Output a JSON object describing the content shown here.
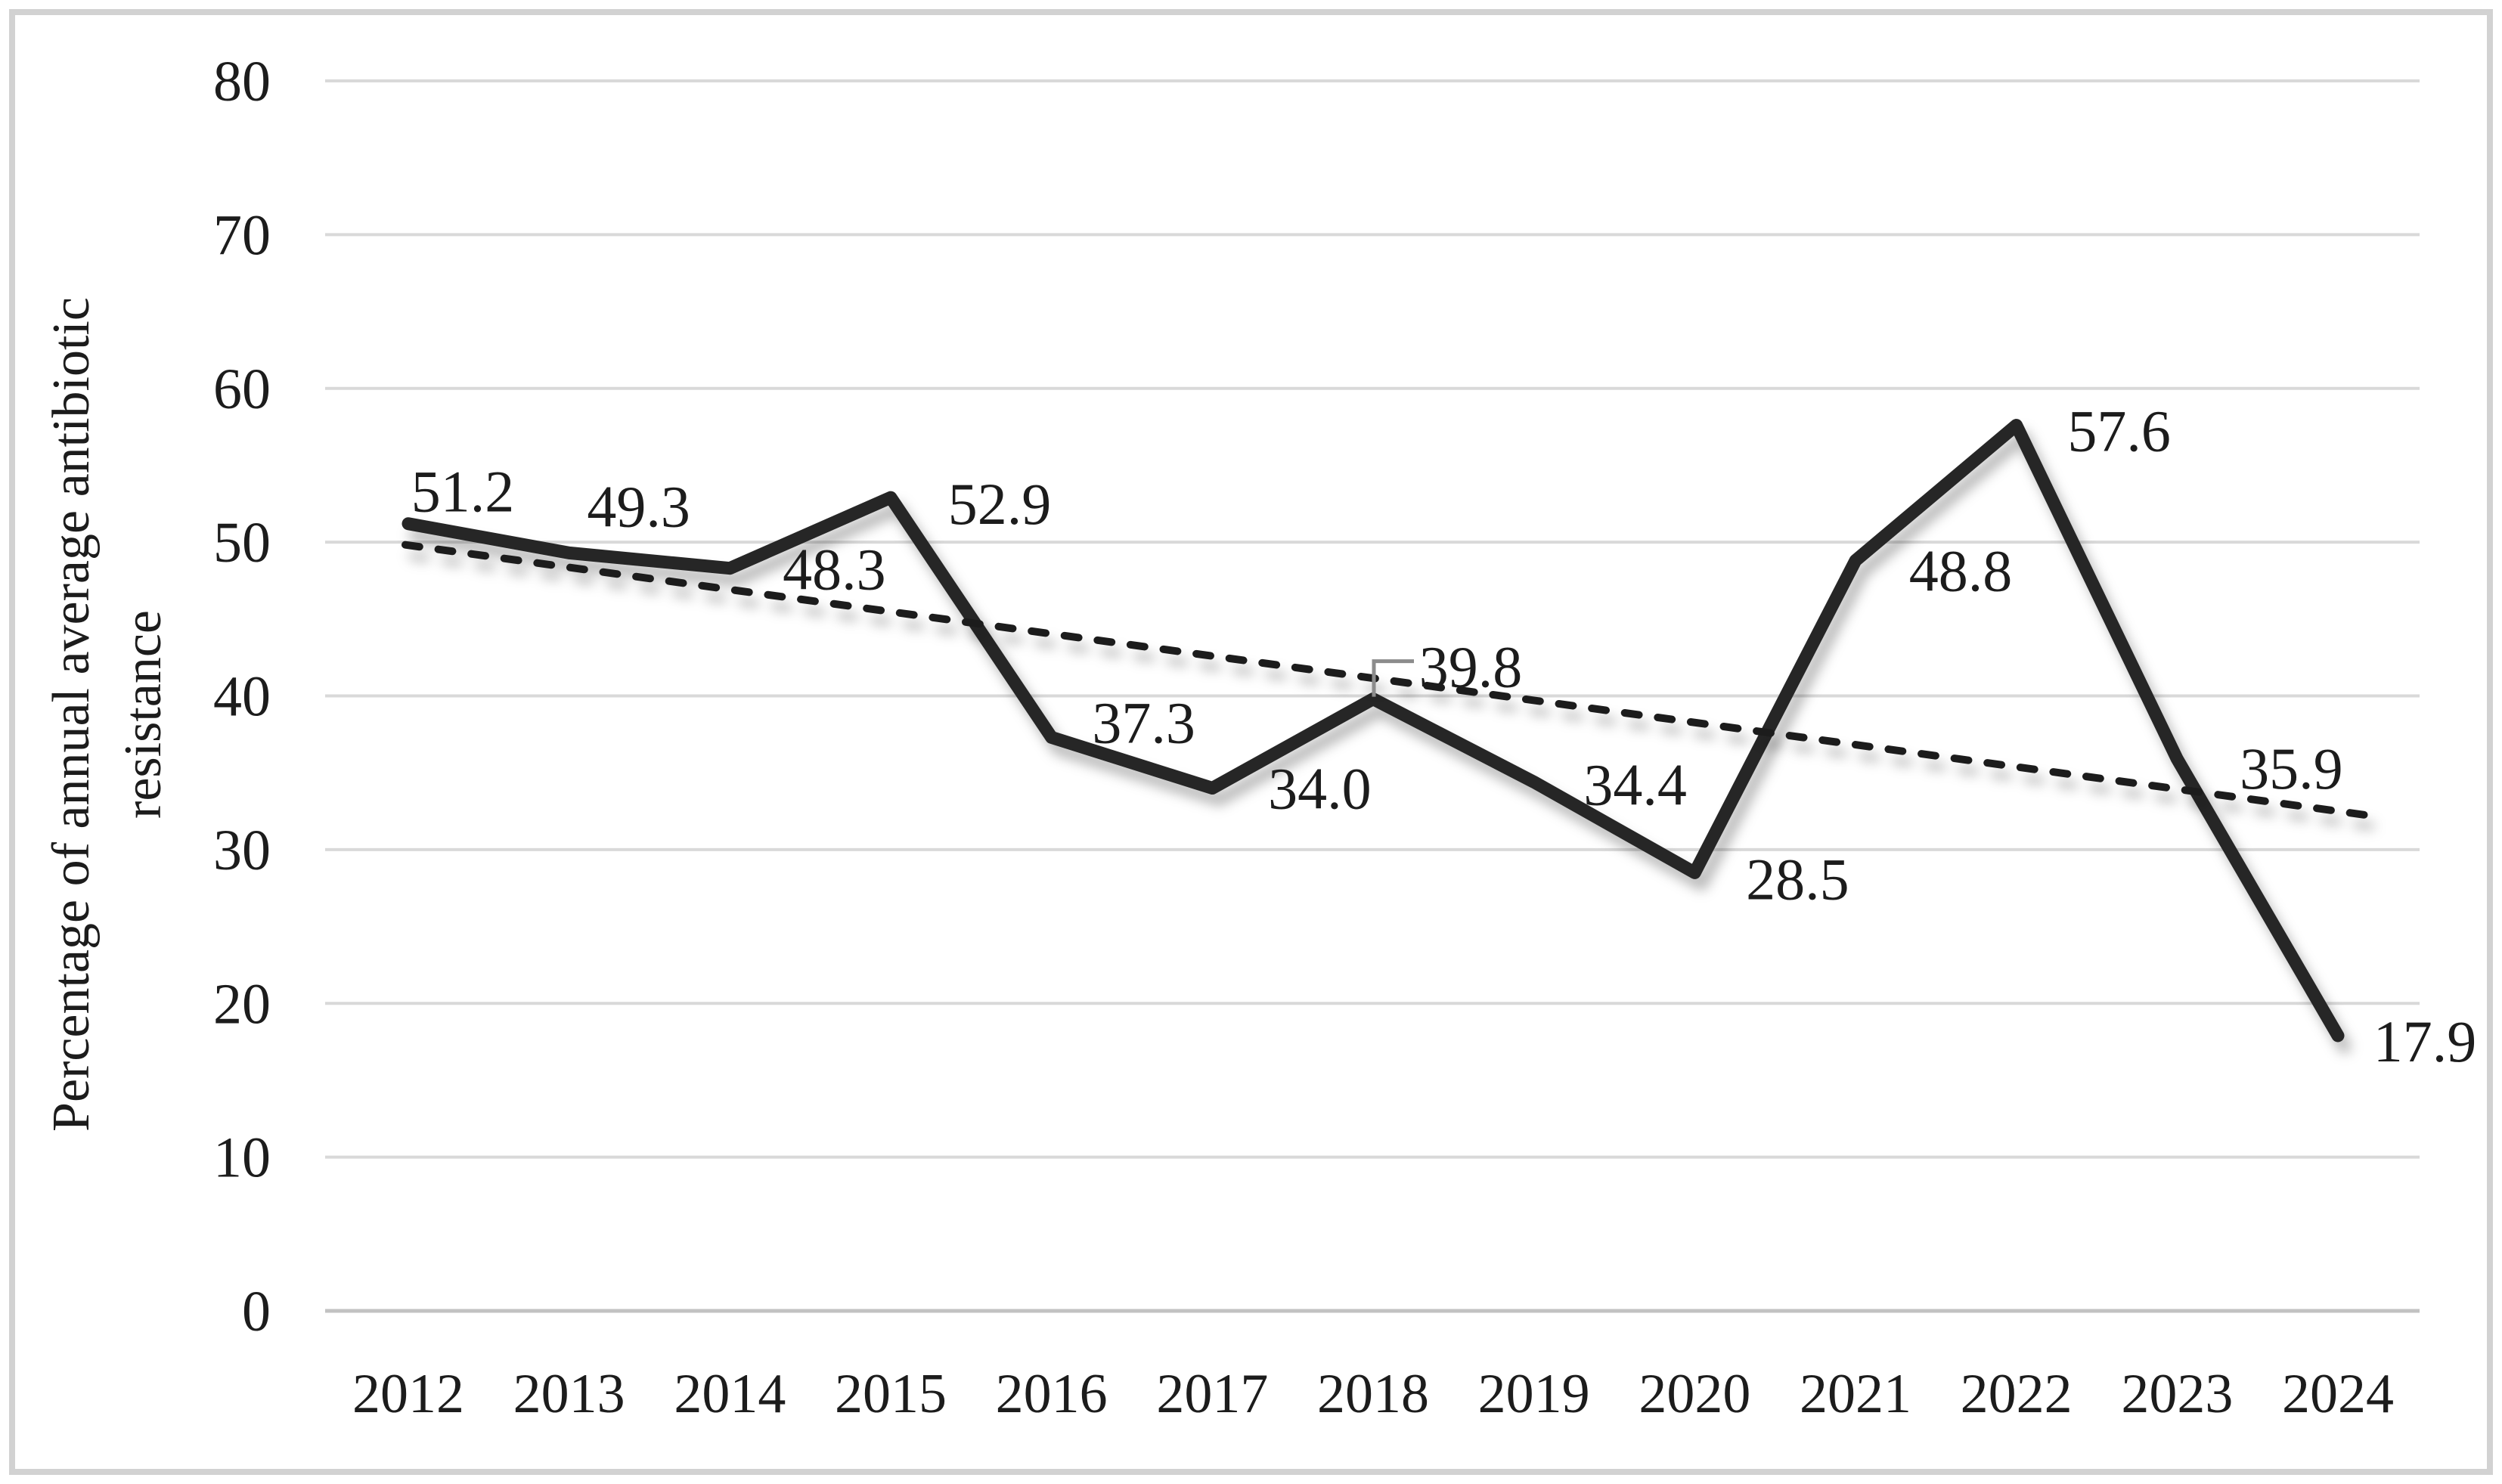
{
  "chart_data": {
    "type": "line",
    "title": "",
    "ylabel": "Percentage of annual average antibiotic resistance",
    "ylabel_lines": [
      "Percentage of annual average antibiotic",
      "resistance"
    ],
    "xlabel": "",
    "categories": [
      "2012",
      "2013",
      "2014",
      "2015",
      "2016",
      "2017",
      "2018",
      "2019",
      "2020",
      "2021",
      "2022",
      "2023",
      "2024"
    ],
    "series": [
      {
        "values": [
          51.2,
          49.3,
          48.3,
          52.9,
          37.3,
          34.0,
          39.8,
          34.4,
          28.5,
          48.8,
          57.6,
          35.9,
          17.9
        ],
        "labels": [
          "51.2",
          "49.3",
          "48.3",
          "52.9",
          "37.3",
          "34.0",
          "39.8",
          "34.4",
          "28.5",
          "48.8",
          "57.6",
          "35.9",
          "17.9"
        ],
        "line_style": "solid",
        "color": "#262626"
      }
    ],
    "trendline": {
      "type": "linear",
      "line_style": "dashed",
      "start_value": 49.8,
      "end_value": 32.5,
      "color": "#1f1f1f"
    },
    "y_axis": {
      "min": 0,
      "max": 80,
      "step": 10,
      "tick_labels": [
        "0",
        "10",
        "20",
        "30",
        "40",
        "50",
        "60",
        "70",
        "80"
      ]
    },
    "x_axis": {
      "tick_labels": [
        "2012",
        "2013",
        "2014",
        "2015",
        "2016",
        "2017",
        "2018",
        "2019",
        "2020",
        "2021",
        "2022",
        "2023",
        "2024"
      ]
    },
    "legend": "none",
    "grid": "horizontal",
    "annotated_point_with_leader": "2018",
    "colors": {
      "text": "#1c1c1c",
      "gridline": "#d9d9d9",
      "baseline": "#c2c2c2",
      "frame": "#d2d2d2",
      "leader": "#8c8c8c",
      "background": "#ffffff"
    }
  }
}
